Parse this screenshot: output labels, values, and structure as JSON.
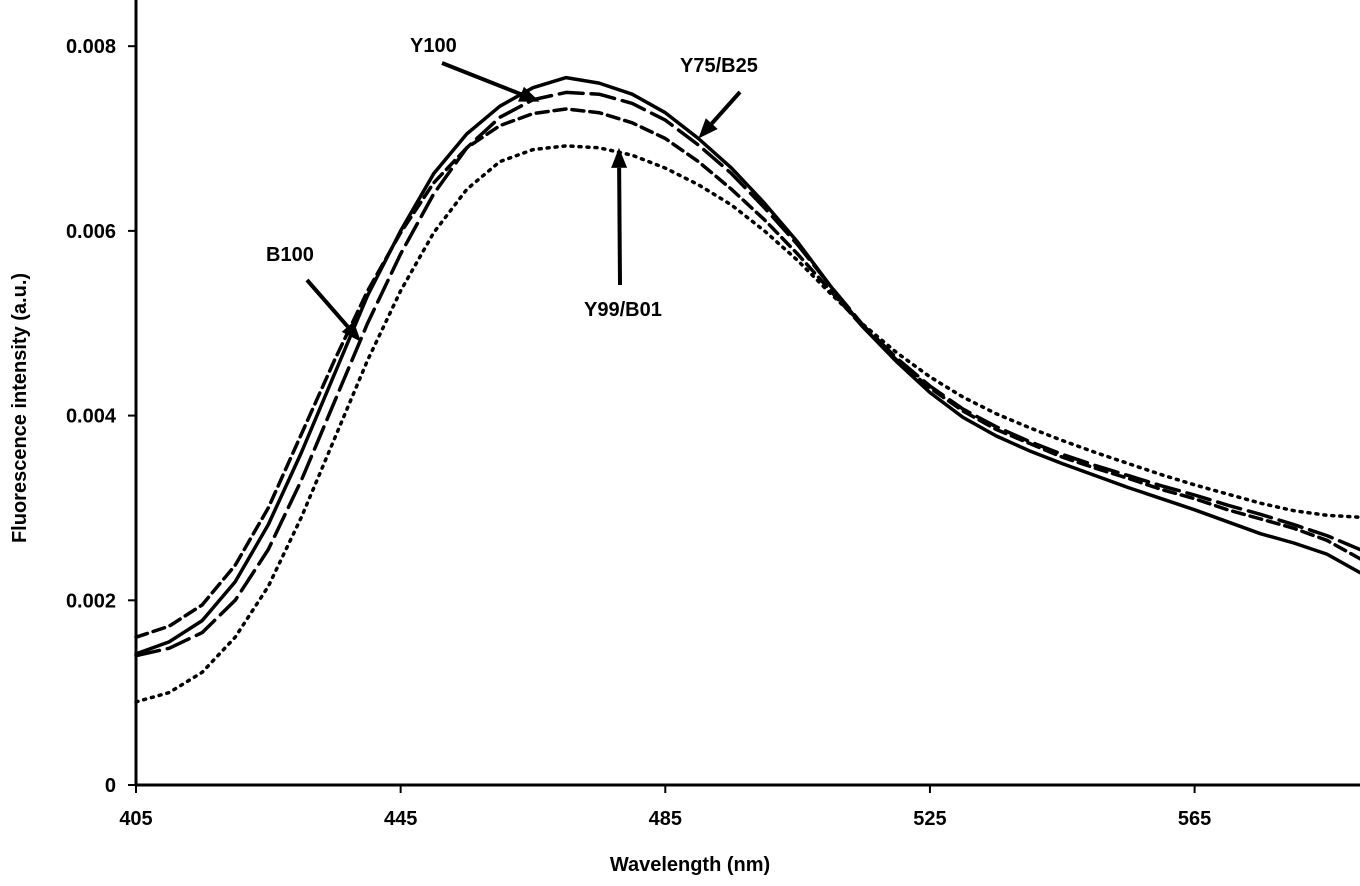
{
  "chart_data": {
    "type": "line",
    "title": "",
    "xlabel": "Wavelength (nm)",
    "ylabel": "Fluorescence  intensity (a.u.)",
    "xlim": [
      405,
      590
    ],
    "ylim": [
      0,
      0.0085
    ],
    "x_ticks": [
      405,
      445,
      485,
      525,
      565
    ],
    "x_tick_labels": [
      "405",
      "445",
      "485",
      "525",
      "565"
    ],
    "y_ticks": [
      0,
      0.002,
      0.004,
      0.006,
      0.008
    ],
    "y_tick_labels": [
      "0",
      "0.002",
      "0.004",
      "0.006",
      "0.008"
    ],
    "grid": false,
    "legend": "none",
    "series": [
      {
        "name": "Y100",
        "style": "solid",
        "color": "#000000",
        "x": [
          405,
          410,
          415,
          420,
          425,
          430,
          435,
          440,
          445,
          450,
          455,
          460,
          465,
          470,
          475,
          480,
          485,
          490,
          495,
          500,
          505,
          510,
          515,
          520,
          525,
          530,
          535,
          540,
          545,
          550,
          555,
          560,
          565,
          570,
          575,
          580,
          585,
          590
        ],
        "y": [
          0.00142,
          0.00155,
          0.00178,
          0.0022,
          0.00282,
          0.0036,
          0.00445,
          0.0053,
          0.006,
          0.00662,
          0.00705,
          0.00735,
          0.00755,
          0.00766,
          0.0076,
          0.00748,
          0.00728,
          0.007,
          0.00668,
          0.0063,
          0.00588,
          0.0054,
          0.00495,
          0.00458,
          0.00425,
          0.00398,
          0.00378,
          0.00362,
          0.00348,
          0.00335,
          0.00322,
          0.0031,
          0.00298,
          0.00285,
          0.00272,
          0.00262,
          0.0025,
          0.0023
        ]
      },
      {
        "name": "B100",
        "style": "short-dash",
        "color": "#000000",
        "x": [
          405,
          410,
          415,
          420,
          425,
          430,
          435,
          440,
          445,
          450,
          455,
          460,
          465,
          470,
          475,
          480,
          485,
          490,
          495,
          500,
          505,
          510,
          515,
          520,
          525,
          530,
          535,
          540,
          545,
          550,
          555,
          560,
          565,
          570,
          575,
          580,
          585,
          590
        ],
        "y": [
          0.0016,
          0.00172,
          0.00195,
          0.00238,
          0.003,
          0.0038,
          0.0046,
          0.00535,
          0.00598,
          0.00652,
          0.0069,
          0.00714,
          0.00727,
          0.00732,
          0.00728,
          0.00717,
          0.007,
          0.00675,
          0.00645,
          0.00612,
          0.00575,
          0.00535,
          0.00495,
          0.0046,
          0.0043,
          0.00405,
          0.00385,
          0.0037,
          0.00355,
          0.00343,
          0.00332,
          0.0032,
          0.0031,
          0.00298,
          0.00288,
          0.00278,
          0.00265,
          0.00245
        ]
      },
      {
        "name": "Y75/B25",
        "style": "long-dash",
        "color": "#000000",
        "x": [
          405,
          410,
          415,
          420,
          425,
          430,
          435,
          440,
          445,
          450,
          455,
          460,
          465,
          470,
          475,
          480,
          485,
          490,
          495,
          500,
          505,
          510,
          515,
          520,
          525,
          530,
          535,
          540,
          545,
          550,
          555,
          560,
          565,
          570,
          575,
          580,
          585,
          590
        ],
        "y": [
          0.0014,
          0.00148,
          0.00165,
          0.002,
          0.00255,
          0.0033,
          0.00415,
          0.005,
          0.00575,
          0.0064,
          0.0069,
          0.00723,
          0.00742,
          0.0075,
          0.00748,
          0.00738,
          0.0072,
          0.00693,
          0.00662,
          0.00625,
          0.00585,
          0.0054,
          0.00497,
          0.00462,
          0.00432,
          0.00407,
          0.00388,
          0.00372,
          0.00358,
          0.00346,
          0.00335,
          0.00324,
          0.00314,
          0.00303,
          0.00293,
          0.00282,
          0.0027,
          0.00255
        ]
      },
      {
        "name": "Y99/B01",
        "style": "dotted",
        "color": "#000000",
        "x": [
          405,
          410,
          415,
          420,
          425,
          430,
          435,
          440,
          445,
          450,
          455,
          460,
          465,
          470,
          475,
          480,
          485,
          490,
          495,
          500,
          505,
          510,
          515,
          520,
          525,
          530,
          535,
          540,
          545,
          550,
          555,
          560,
          565,
          570,
          575,
          580,
          585,
          590
        ],
        "y": [
          0.0009,
          0.001,
          0.00122,
          0.0016,
          0.00215,
          0.0029,
          0.00375,
          0.0046,
          0.00535,
          0.00598,
          0.00645,
          0.00675,
          0.00688,
          0.00692,
          0.0069,
          0.00682,
          0.00668,
          0.0065,
          0.00628,
          0.006,
          0.00568,
          0.00532,
          0.00498,
          0.00468,
          0.00442,
          0.0042,
          0.00402,
          0.00387,
          0.00373,
          0.0036,
          0.00348,
          0.00336,
          0.00325,
          0.00315,
          0.00305,
          0.00297,
          0.00292,
          0.0029
        ]
      }
    ],
    "annotations": [
      {
        "text": "Y100",
        "points_to_x": 466,
        "points_to_y": 0.0074
      },
      {
        "text": "Y75/B25",
        "points_to_x": 490,
        "points_to_y": 0.007
      },
      {
        "text": "B100",
        "points_to_x": 439,
        "points_to_y": 0.0048
      },
      {
        "text": "Y99/B01",
        "points_to_x": 478,
        "points_to_y": 0.0069
      }
    ]
  }
}
